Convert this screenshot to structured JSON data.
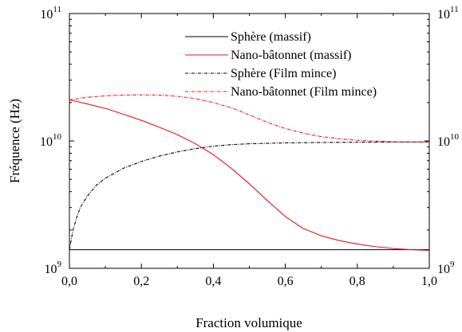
{
  "chart_data": {
    "type": "line",
    "title": "",
    "xlabel": "Fraction volumique",
    "ylabel": "Fréquence (Hz)",
    "x_scale": "linear",
    "y_scale": "log",
    "xlim": [
      0.0,
      1.0
    ],
    "ylim": [
      1000000000.0,
      100000000000.0
    ],
    "x_ticks": [
      {
        "value": 0.0,
        "label": "0,0"
      },
      {
        "value": 0.2,
        "label": "0,2"
      },
      {
        "value": 0.4,
        "label": "0,4"
      },
      {
        "value": 0.6,
        "label": "0,6"
      },
      {
        "value": 0.8,
        "label": "0,8"
      },
      {
        "value": 1.0,
        "label": "1,0"
      }
    ],
    "y_ticks": [
      {
        "value": 1000000000.0,
        "base": "10",
        "exp": "9"
      },
      {
        "value": 10000000000.0,
        "base": "10",
        "exp": "10"
      },
      {
        "value": 100000000000.0,
        "base": "10",
        "exp": "11"
      }
    ],
    "right_axis_mirrored": true,
    "grid": false,
    "legend_position": "top-right",
    "series": [
      {
        "name": "Sphère (massif)",
        "color": "#000000",
        "style": "solid",
        "x": [
          0.0,
          0.2,
          0.4,
          0.6,
          0.8,
          1.0
        ],
        "y": [
          1400000000.0,
          1400000000.0,
          1400000000.0,
          1400000000.0,
          1400000000.0,
          1400000000.0
        ]
      },
      {
        "name": "Nano-bâtonnet (massif)",
        "color": "#e8141c",
        "style": "solid",
        "x": [
          0.0,
          0.05,
          0.1,
          0.15,
          0.2,
          0.25,
          0.3,
          0.35,
          0.4,
          0.45,
          0.5,
          0.55,
          0.6,
          0.65,
          0.7,
          0.75,
          0.8,
          0.85,
          0.9,
          0.95,
          1.0
        ],
        "y": [
          21000000000.0,
          19500000000.0,
          18000000000.0,
          16200000000.0,
          14500000000.0,
          12800000000.0,
          11200000000.0,
          9500000000.0,
          7800000000.0,
          6100000000.0,
          4600000000.0,
          3400000000.0,
          2550000000.0,
          2050000000.0,
          1800000000.0,
          1650000000.0,
          1550000000.0,
          1480000000.0,
          1430000000.0,
          1400000000.0,
          1380000000.0
        ]
      },
      {
        "name": "Sphère (Film mince)",
        "color": "#000000",
        "style": "dashdot",
        "x": [
          0.0,
          0.01,
          0.02,
          0.03,
          0.05,
          0.075,
          0.1,
          0.15,
          0.2,
          0.25,
          0.3,
          0.35,
          0.4,
          0.45,
          0.5,
          0.6,
          0.7,
          0.8,
          0.9,
          1.0
        ],
        "y": [
          1400000000.0,
          2000000000.0,
          2500000000.0,
          3000000000.0,
          3700000000.0,
          4500000000.0,
          5100000000.0,
          6100000000.0,
          6900000000.0,
          7600000000.0,
          8200000000.0,
          8700000000.0,
          9100000000.0,
          9350000000.0,
          9500000000.0,
          9650000000.0,
          9720000000.0,
          9770000000.0,
          9800000000.0,
          9820000000.0
        ]
      },
      {
        "name": "Nano-bâtonnet (Film mince)",
        "color": "#e8141c",
        "style": "dashdot",
        "x": [
          0.0,
          0.05,
          0.1,
          0.15,
          0.2,
          0.25,
          0.3,
          0.35,
          0.4,
          0.45,
          0.5,
          0.55,
          0.6,
          0.65,
          0.7,
          0.75,
          0.8,
          0.85,
          0.9,
          0.95,
          1.0
        ],
        "y": [
          21000000000.0,
          22000000000.0,
          22600000000.0,
          22900000000.0,
          23000000000.0,
          22900000000.0,
          22400000000.0,
          21500000000.0,
          20000000000.0,
          18200000000.0,
          16000000000.0,
          14000000000.0,
          12500000000.0,
          11500000000.0,
          10800000000.0,
          10400000000.0,
          10100000000.0,
          9950000000.0,
          9850000000.0,
          9800000000.0,
          9800000000.0
        ]
      }
    ]
  }
}
